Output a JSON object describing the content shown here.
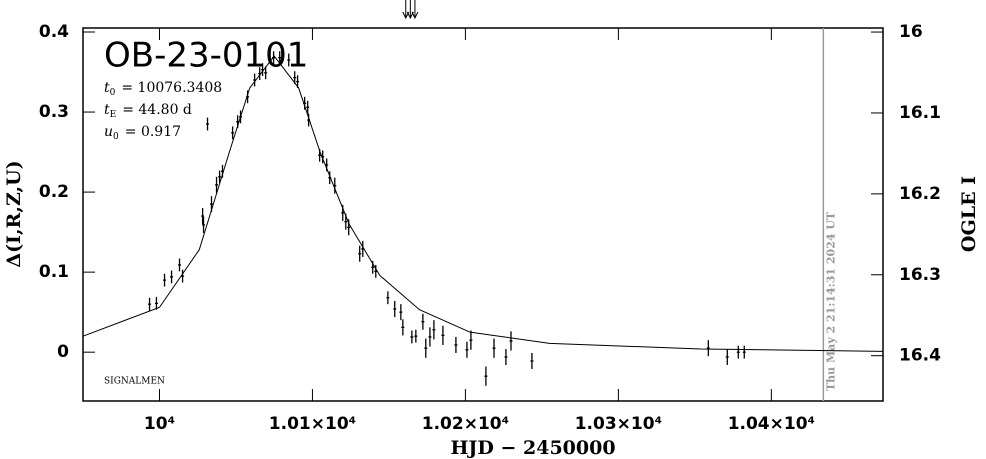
{
  "chart_data": {
    "type": "scatter",
    "title": "OB-23-0101",
    "params": [
      {
        "symbol": "t",
        "sub": "0",
        "text": "= 10076.3408"
      },
      {
        "symbol": "t",
        "sub": "E",
        "text": "= 44.80 d"
      },
      {
        "symbol": "u",
        "sub": "0",
        "text": "= 0.917"
      }
    ],
    "credit": "SIGNALMEN",
    "timestamp": "Thu May  2 21:14:31 2024 UT",
    "now_x": 10434,
    "arrows_x": [
      10161,
      10164,
      10167
    ],
    "x_label": "HJD − 2450000",
    "y_label": "Δ(I,R,Z,U)",
    "y2_label": "OGLE I",
    "xlim": [
      9950,
      10473
    ],
    "ylim": [
      -0.061,
      0.405
    ],
    "y2lim": [
      15.995,
      16.456
    ],
    "xticks": [
      {
        "value": 10000,
        "label": "10⁴"
      },
      {
        "value": 10100,
        "label": "1.01×10⁴"
      },
      {
        "value": 10200,
        "label": "1.02×10⁴"
      },
      {
        "value": 10300,
        "label": "1.03×10⁴"
      },
      {
        "value": 10400,
        "label": "1.04×10⁴"
      }
    ],
    "yticks": [
      0,
      0.1,
      0.2,
      0.3,
      0.4
    ],
    "y2ticks": [
      16,
      16.1,
      16.2,
      16.3,
      16.4
    ],
    "color": "#000000",
    "x": [
      9993.5,
      9998.0,
      10003.3,
      10007.9,
      10013.1,
      10015.1,
      10028.2,
      10028.8,
      10031.4,
      10034.0,
      10037.3,
      10039.3,
      10041.2,
      10047.8,
      10051.1,
      10053.0,
      10057.6,
      10062.2,
      10065.5,
      10067.4,
      10069.4,
      10074.6,
      10078.6,
      10084.5,
      10088.4,
      10090.3,
      10094.9,
      10096.9,
      10097.5,
      10104.7,
      10106.7,
      10109.3,
      10111.3,
      10114.6,
      10119.8,
      10121.8,
      10123.7,
      10130.9,
      10132.9,
      10139.4,
      10141.4,
      10149.3,
      10153.8,
      10157.8,
      10159.1,
      10165.0,
      10167.6,
      10172.2,
      10174.1,
      10176.8,
      10179.4,
      10185.3,
      10193.8,
      10201.0,
      10203.6,
      10213.4,
      10218.7,
      10226.5,
      10229.8,
      10243.5,
      10358.8,
      10371.2,
      10378.4,
      10382.3
    ],
    "values": [
      0.06,
      0.061,
      0.09,
      0.094,
      0.109,
      0.095,
      0.17,
      0.159,
      0.285,
      0.185,
      0.209,
      0.219,
      0.226,
      0.274,
      0.288,
      0.294,
      0.319,
      0.34,
      0.348,
      0.353,
      0.349,
      0.368,
      0.368,
      0.365,
      0.343,
      0.338,
      0.311,
      0.306,
      0.29,
      0.246,
      0.244,
      0.234,
      0.218,
      0.208,
      0.174,
      0.163,
      0.156,
      0.123,
      0.129,
      0.106,
      0.101,
      0.068,
      0.054,
      0.05,
      0.031,
      0.019,
      0.02,
      0.038,
      0.005,
      0.019,
      0.028,
      0.021,
      0.009,
      0.003,
      0.015,
      -0.03,
      0.005,
      -0.006,
      0.014,
      -0.011,
      0.005,
      -0.006,
      0.0,
      0.0
    ],
    "errors": [
      0.008,
      0.008,
      0.008,
      0.008,
      0.008,
      0.008,
      0.01,
      0.01,
      0.008,
      0.01,
      0.01,
      0.008,
      0.008,
      0.008,
      0.008,
      0.008,
      0.008,
      0.008,
      0.008,
      0.008,
      0.008,
      0.008,
      0.008,
      0.008,
      0.008,
      0.008,
      0.008,
      0.008,
      0.008,
      0.008,
      0.008,
      0.008,
      0.008,
      0.01,
      0.01,
      0.01,
      0.01,
      0.01,
      0.01,
      0.008,
      0.008,
      0.008,
      0.01,
      0.01,
      0.01,
      0.008,
      0.008,
      0.01,
      0.012,
      0.012,
      0.012,
      0.012,
      0.01,
      0.01,
      0.012,
      0.012,
      0.012,
      0.01,
      0.012,
      0.01,
      0.01,
      0.01,
      0.008,
      0.008
    ],
    "model": {
      "x": [
        9950,
        10000,
        10026,
        10046,
        10059,
        10075,
        10091,
        10105,
        10124,
        10144,
        10170,
        10203,
        10255,
        10354,
        10473
      ],
      "values": [
        0.02,
        0.056,
        0.128,
        0.252,
        0.33,
        0.37,
        0.33,
        0.25,
        0.16,
        0.096,
        0.053,
        0.025,
        0.011,
        0.004,
        0.001
      ]
    }
  }
}
